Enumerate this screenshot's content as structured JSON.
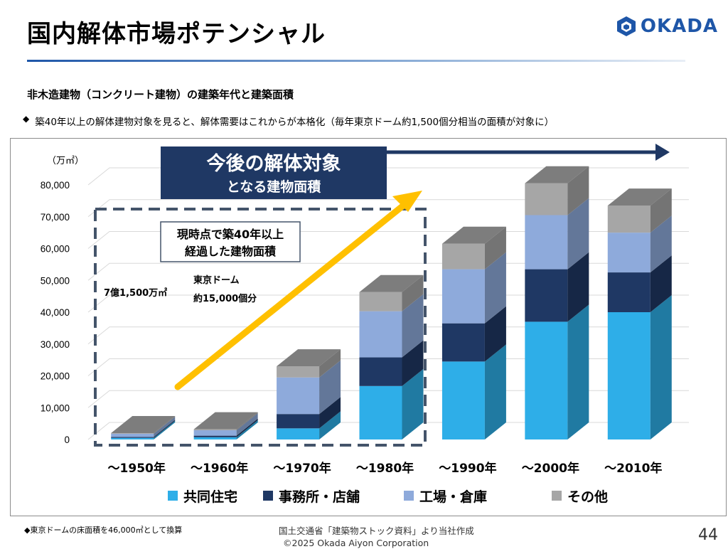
{
  "header": {
    "title": "国内解体市場ポテンシャル",
    "logo_text": "OKADA",
    "logo_icon": "hexagon-logo-icon",
    "brand_color": "#1e56a8"
  },
  "subtitle": "非木造建物（コンクリート建物）の建築年代と建築面積",
  "bullet": {
    "icon": "diamond-bullet-icon",
    "text": "築40年以上の解体建物対象を見ると、解体需要はこれからが本格化（毎年東京ドーム約1,500個分相当の面積が対象に）"
  },
  "chart_data": {
    "type": "bar",
    "stacked": true,
    "three_d": true,
    "unit_label": "（万㎡）",
    "categories": [
      "～1950年",
      "～1960年",
      "～1970年",
      "～1980年",
      "～1990年",
      "～2000年",
      "～2010年"
    ],
    "series": [
      {
        "name": "共同住宅",
        "color": "#2eaee8",
        "values": [
          500,
          700,
          3500,
          16800,
          24500,
          37000,
          40000
        ]
      },
      {
        "name": "事務所・店舗",
        "color": "#1f3864",
        "values": [
          300,
          500,
          4500,
          9000,
          12000,
          16500,
          12500
        ]
      },
      {
        "name": "工場・倉庫",
        "color": "#8eaadb",
        "values": [
          1000,
          1700,
          11500,
          14500,
          17000,
          17000,
          12500
        ]
      },
      {
        "name": "その他",
        "color": "#a6a6a6",
        "values": [
          200,
          300,
          3500,
          6000,
          8000,
          10000,
          8500
        ]
      }
    ],
    "y_ticks": [
      "0",
      "10,000",
      "20,000",
      "30,000",
      "40,000",
      "50,000",
      "60,000",
      "70,000",
      "80,000"
    ],
    "ylim": [
      0,
      80000
    ],
    "grid": true,
    "legend_position": "bottom"
  },
  "annotations": {
    "future_title": "今後の解体対象",
    "future_sub": "となる建物面積",
    "box_line1": "現時点で築40年以上",
    "box_line2": "経過した建物面積",
    "area_total": "7億1,500万㎡",
    "dome_line1": "東京ドーム",
    "dome_line2": "約15,000個分"
  },
  "footnote": "◆東京ドームの床面積を46,000㎡として換算",
  "source": "国土交通省「建築物ストック資料」より当社作成",
  "copyright": "©2025 Okada Aiyon Corporation",
  "page_number": "44"
}
